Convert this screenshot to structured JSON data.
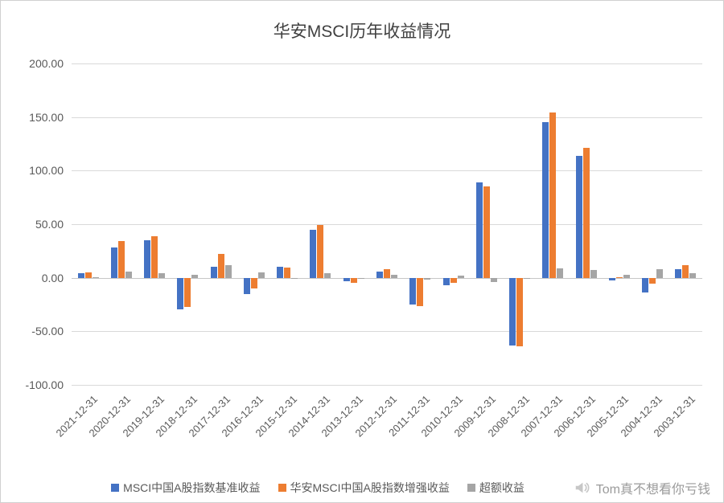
{
  "title": "华安MSCI历年收益情况",
  "watermark": {
    "text": "Tom真不想看你亏钱",
    "icon": "megaphone-icon"
  },
  "chart_data": {
    "type": "bar",
    "title": "华安MSCI历年收益情况",
    "categories": [
      "2021-12-31",
      "2020-12-31",
      "2019-12-31",
      "2018-12-31",
      "2017-12-31",
      "2016-12-31",
      "2015-12-31",
      "2014-12-31",
      "2013-12-31",
      "2012-12-31",
      "2011-12-31",
      "2010-12-31",
      "2009-12-31",
      "2008-12-31",
      "2007-12-31",
      "2006-12-31",
      "2005-12-31",
      "2004-12-31",
      "2003-12-31"
    ],
    "series": [
      {
        "name": "MSCI中国A股指数基准收益",
        "color": "#4472C4",
        "values": [
          4.5,
          28,
          35,
          -29.5,
          10,
          -15,
          10,
          45,
          -3.5,
          5.5,
          -25,
          -7,
          89,
          -63,
          145,
          114,
          -2.5,
          -13.5,
          8
        ]
      },
      {
        "name": "华安MSCI中国A股指数增强收益",
        "color": "#ED7D31",
        "values": [
          5,
          34,
          39,
          -27,
          22,
          -10,
          9.5,
          49.5,
          -4.5,
          8,
          -26.5,
          -5,
          85,
          -64,
          154,
          121,
          0.5,
          -5.5,
          12
        ]
      },
      {
        "name": "超额收益",
        "color": "#A5A5A5",
        "values": [
          0.5,
          6,
          4,
          2.5,
          12,
          5,
          -0.5,
          4.5,
          -1,
          2.5,
          -1.5,
          2,
          -4,
          -1,
          9,
          7,
          3,
          8,
          4
        ]
      }
    ],
    "ylim": [
      -100,
      200
    ],
    "yticks": [
      200,
      150,
      100,
      50,
      0,
      -50,
      -100
    ],
    "grid": true,
    "legend_position": "bottom"
  }
}
